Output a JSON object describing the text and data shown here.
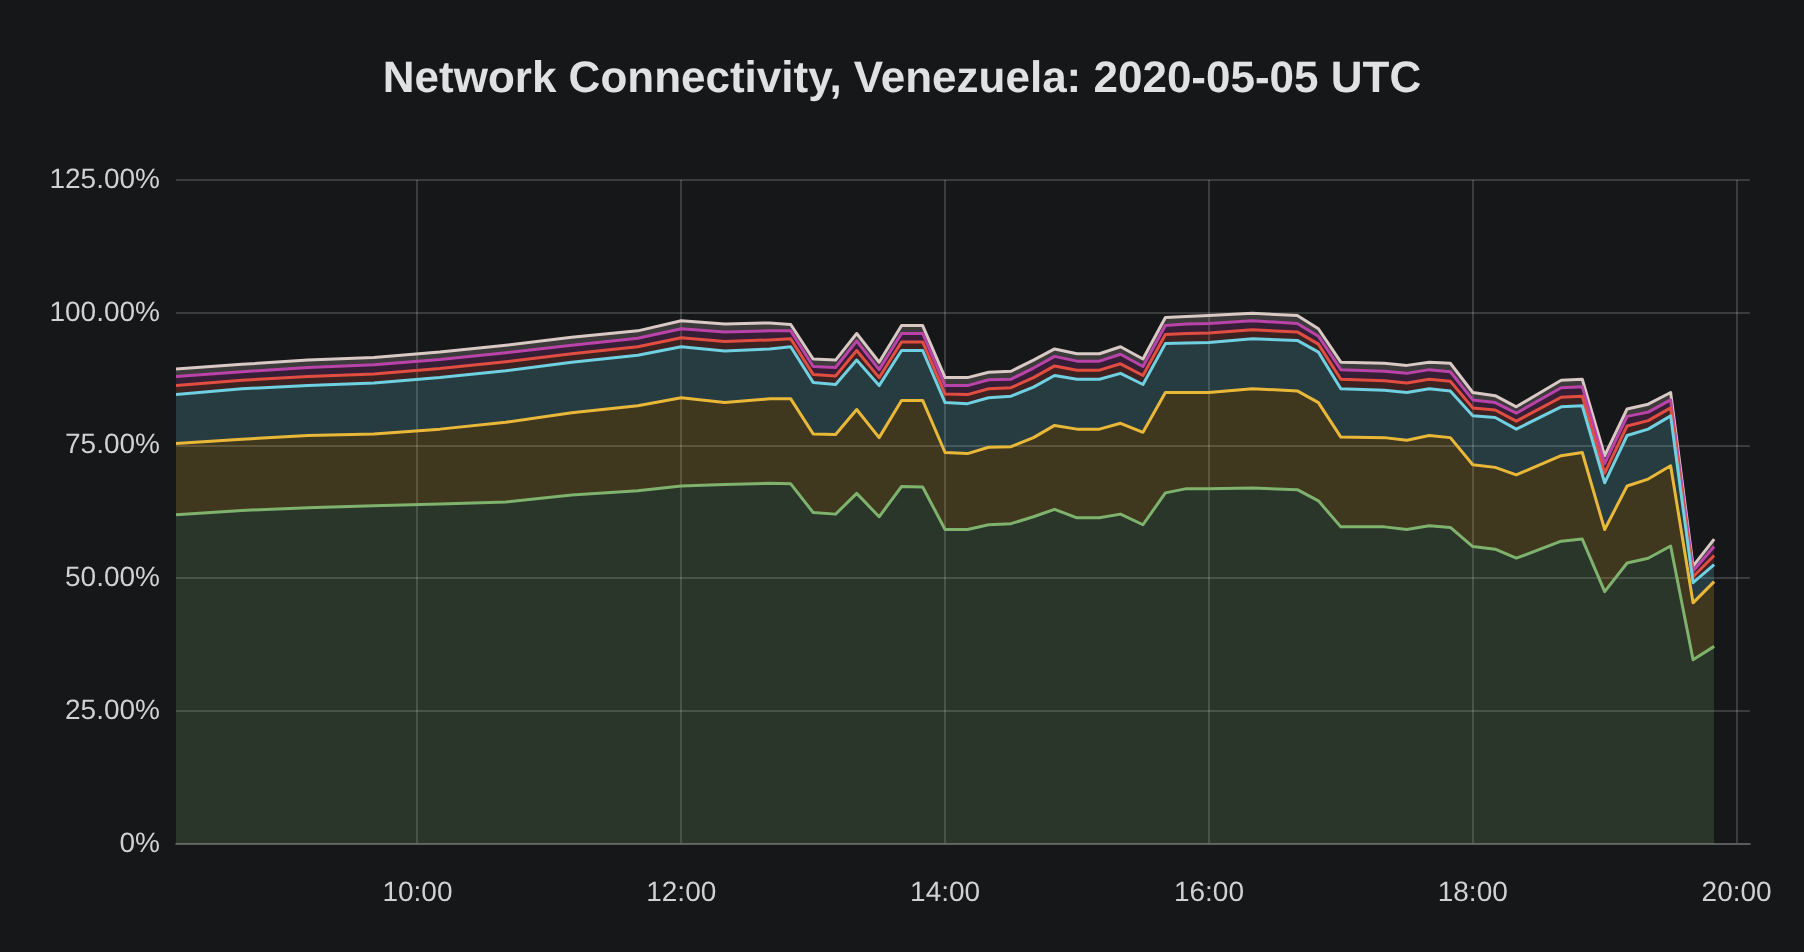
{
  "chart_data": {
    "type": "area",
    "title": "Network Connectivity, Venezuela: 2020-05-05 UTC",
    "stacked": true,
    "grid": true,
    "x": [
      8.17,
      8.67,
      9.17,
      9.67,
      10.17,
      10.67,
      11.17,
      11.67,
      12,
      12.33,
      12.67,
      12.83,
      13,
      13.17,
      13.33,
      13.5,
      13.67,
      13.83,
      14,
      14.17,
      14.33,
      14.5,
      14.67,
      14.83,
      15,
      15.17,
      15.33,
      15.5,
      15.67,
      15.83,
      16,
      16.33,
      16.67,
      16.83,
      17,
      17.33,
      17.5,
      17.67,
      17.83,
      18,
      18.17,
      18.33,
      18.67,
      18.83,
      19,
      19.17,
      19.33,
      19.5,
      19.67,
      19.83
    ],
    "xlim": [
      8.17,
      20.1
    ],
    "xticks": [
      {
        "value": 10,
        "label": "10:00"
      },
      {
        "value": 12,
        "label": "12:00"
      },
      {
        "value": 14,
        "label": "14:00"
      },
      {
        "value": 16,
        "label": "16:00"
      },
      {
        "value": 18,
        "label": "18:00"
      },
      {
        "value": 20,
        "label": "20:00"
      }
    ],
    "ylim": [
      0,
      125
    ],
    "yticks": [
      {
        "value": 0,
        "label": "0%"
      },
      {
        "value": 25,
        "label": "25.00%"
      },
      {
        "value": 50,
        "label": "50.00%"
      },
      {
        "value": 75,
        "label": "75.00%"
      },
      {
        "value": 100,
        "label": "100.00%"
      },
      {
        "value": 125,
        "label": "125.00%"
      }
    ],
    "series": [
      {
        "color": "#7eb26d",
        "values": [
          62.0,
          62.8,
          63.3,
          63.7,
          64.0,
          64.4,
          65.7,
          66.5,
          67.4,
          67.7,
          67.9,
          67.8,
          62.4,
          62.1,
          66.0,
          61.6,
          67.3,
          67.2,
          59.2,
          59.2,
          60.1,
          60.3,
          61.6,
          63.0,
          61.4,
          61.4,
          62.1,
          60.1,
          66.1,
          66.9,
          66.9,
          67.0,
          66.7,
          64.6,
          59.7,
          59.7,
          59.2,
          59.9,
          59.6,
          56.0,
          55.5,
          53.8,
          57.0,
          57.4,
          47.5,
          52.9,
          53.8,
          56.1,
          34.7,
          37.2
        ]
      },
      {
        "color": "#eab839",
        "values": [
          13.4,
          13.4,
          13.6,
          13.5,
          14.1,
          15.0,
          15.5,
          16.0,
          16.6,
          15.4,
          15.9,
          16.0,
          14.8,
          15.0,
          15.8,
          14.9,
          16.2,
          16.3,
          14.5,
          14.3,
          14.6,
          14.5,
          14.9,
          15.8,
          16.7,
          16.7,
          17.1,
          17.4,
          18.9,
          18.1,
          18.1,
          18.7,
          18.6,
          18.5,
          16.9,
          16.8,
          16.8,
          17.0,
          16.9,
          15.4,
          15.4,
          15.7,
          16.1,
          16.3,
          11.7,
          14.5,
          14.9,
          15.1,
          10.7,
          12.2
        ]
      },
      {
        "color": "#6ed0e0",
        "values": [
          9.2,
          9.5,
          9.4,
          9.6,
          9.7,
          9.7,
          9.5,
          9.5,
          9.6,
          9.7,
          9.4,
          9.8,
          9.7,
          9.4,
          9.3,
          9.8,
          9.4,
          9.4,
          9.4,
          9.4,
          9.3,
          9.5,
          9.5,
          9.4,
          9.4,
          9.4,
          9.4,
          9.0,
          9.2,
          9.3,
          9.4,
          9.4,
          9.5,
          9.5,
          9.1,
          8.9,
          9.0,
          8.8,
          8.8,
          9.2,
          9.4,
          8.6,
          9.2,
          8.8,
          8.8,
          9.5,
          9.4,
          9.4,
          3.8,
          3.2
        ]
      },
      {
        "color": "#e24d42",
        "values": [
          1.7,
          1.6,
          1.7,
          1.7,
          1.7,
          1.7,
          1.6,
          1.6,
          1.7,
          1.8,
          1.7,
          1.5,
          1.5,
          1.6,
          1.8,
          1.5,
          1.6,
          1.6,
          1.6,
          1.7,
          1.7,
          1.6,
          1.8,
          1.8,
          1.7,
          1.7,
          1.8,
          1.7,
          1.7,
          1.8,
          1.8,
          1.7,
          1.6,
          1.5,
          1.8,
          1.8,
          1.8,
          1.8,
          1.8,
          1.5,
          1.4,
          1.5,
          1.8,
          1.8,
          1.8,
          1.8,
          1.6,
          1.5,
          1.1,
          1.7
        ]
      },
      {
        "color": "#ba43a9",
        "values": [
          1.7,
          1.6,
          1.7,
          1.7,
          1.7,
          1.7,
          1.6,
          1.6,
          1.7,
          1.8,
          1.7,
          1.5,
          1.5,
          1.6,
          1.8,
          1.5,
          1.6,
          1.6,
          1.6,
          1.7,
          1.7,
          1.6,
          1.8,
          1.8,
          1.7,
          1.7,
          1.8,
          1.7,
          1.7,
          1.8,
          1.8,
          1.7,
          1.6,
          1.5,
          1.8,
          1.8,
          1.8,
          1.8,
          1.8,
          1.5,
          1.4,
          1.5,
          1.8,
          1.8,
          1.8,
          1.8,
          1.6,
          1.5,
          1.1,
          1.7
        ]
      },
      {
        "color": "#d9c9c4",
        "values": [
          1.4,
          1.4,
          1.4,
          1.4,
          1.4,
          1.4,
          1.5,
          1.4,
          1.5,
          1.5,
          1.5,
          1.2,
          1.4,
          1.4,
          1.4,
          1.4,
          1.5,
          1.5,
          1.5,
          1.5,
          1.4,
          1.5,
          1.5,
          1.4,
          1.4,
          1.4,
          1.4,
          1.4,
          1.5,
          1.4,
          1.5,
          1.4,
          1.5,
          1.4,
          1.4,
          1.5,
          1.5,
          1.4,
          1.6,
          1.4,
          1.3,
          1.2,
          1.4,
          1.4,
          1.5,
          1.4,
          1.5,
          1.4,
          0.9,
          1.4
        ]
      }
    ]
  }
}
